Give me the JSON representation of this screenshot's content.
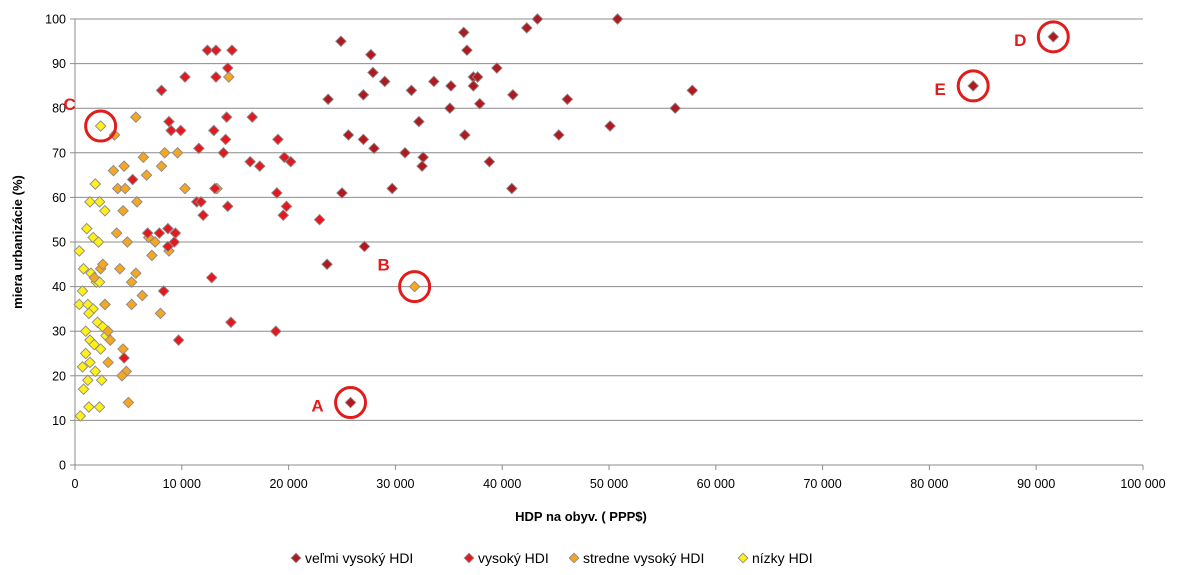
{
  "chart_data": {
    "type": "scatter",
    "xlabel": "HDP na obyv. ( PPP$)",
    "ylabel": "miera urbanizácie  (%)",
    "xlim": [
      0,
      100000
    ],
    "ylim": [
      0,
      100
    ],
    "x_ticks": [
      0,
      10000,
      20000,
      30000,
      40000,
      50000,
      60000,
      70000,
      80000,
      90000,
      100000
    ],
    "x_tick_labels": [
      "0",
      "10 000",
      "20 000",
      "30 000",
      "40 000",
      "50 000",
      "60 000",
      "70 000",
      "80 000",
      "90 000",
      "100 000"
    ],
    "y_ticks": [
      0,
      10,
      20,
      30,
      40,
      50,
      60,
      70,
      80,
      90,
      100
    ],
    "grid": "horizontal",
    "legend_position": "bottom",
    "series": [
      {
        "name": "veľmi vysoký HDI",
        "color": "#b0191f",
        "points": [
          [
            25800,
            14
          ],
          [
            43300,
            100
          ],
          [
            50800,
            100
          ],
          [
            42300,
            98
          ],
          [
            36400,
            97
          ],
          [
            24900,
            95
          ],
          [
            36700,
            93
          ],
          [
            27700,
            92
          ],
          [
            29000,
            86
          ],
          [
            33600,
            86
          ],
          [
            35200,
            85
          ],
          [
            31500,
            84
          ],
          [
            23700,
            82
          ],
          [
            41000,
            83
          ],
          [
            46100,
            82
          ],
          [
            57800,
            84
          ],
          [
            56200,
            80
          ],
          [
            37900,
            81
          ],
          [
            35100,
            80
          ],
          [
            37300,
            87
          ],
          [
            37700,
            87
          ],
          [
            39500,
            89
          ],
          [
            27900,
            88
          ],
          [
            37300,
            85
          ],
          [
            27000,
            83
          ],
          [
            32200,
            77
          ],
          [
            28000,
            71
          ],
          [
            36500,
            74
          ],
          [
            25600,
            74
          ],
          [
            27000,
            73
          ],
          [
            45300,
            74
          ],
          [
            50100,
            76
          ],
          [
            30900,
            70
          ],
          [
            32600,
            69
          ],
          [
            32500,
            67
          ],
          [
            38800,
            68
          ],
          [
            40900,
            62
          ],
          [
            29700,
            62
          ],
          [
            25000,
            61
          ],
          [
            27100,
            49
          ],
          [
            23600,
            45
          ],
          [
            84100,
            85
          ],
          [
            91600,
            96
          ]
        ]
      },
      {
        "name": "vysoký HDI",
        "color": "#e3191f",
        "points": [
          [
            12400,
            93
          ],
          [
            13200,
            93
          ],
          [
            14700,
            93
          ],
          [
            14300,
            89
          ],
          [
            13200,
            87
          ],
          [
            10300,
            87
          ],
          [
            8100,
            84
          ],
          [
            14200,
            78
          ],
          [
            16600,
            78
          ],
          [
            8800,
            77
          ],
          [
            9000,
            75
          ],
          [
            9900,
            75
          ],
          [
            13000,
            75
          ],
          [
            11600,
            71
          ],
          [
            14100,
            73
          ],
          [
            13900,
            70
          ],
          [
            19000,
            73
          ],
          [
            7900,
            52
          ],
          [
            8700,
            53
          ],
          [
            9400,
            52
          ],
          [
            11400,
            59
          ],
          [
            11800,
            59
          ],
          [
            12000,
            56
          ],
          [
            13100,
            62
          ],
          [
            14300,
            58
          ],
          [
            16400,
            68
          ],
          [
            17300,
            67
          ],
          [
            18900,
            61
          ],
          [
            19600,
            69
          ],
          [
            20200,
            68
          ],
          [
            19800,
            58
          ],
          [
            19500,
            56
          ],
          [
            22900,
            55
          ],
          [
            6800,
            52
          ],
          [
            5400,
            64
          ],
          [
            8700,
            49
          ],
          [
            9300,
            50
          ],
          [
            8300,
            39
          ],
          [
            4600,
            24
          ],
          [
            12800,
            42
          ],
          [
            14600,
            32
          ],
          [
            9700,
            28
          ],
          [
            18800,
            30
          ]
        ]
      },
      {
        "name": "stredne vysoký HDI",
        "color": "#f5a623",
        "points": [
          [
            31800,
            40
          ],
          [
            14400,
            87
          ],
          [
            5700,
            78
          ],
          [
            3700,
            74
          ],
          [
            4000,
            62
          ],
          [
            4700,
            62
          ],
          [
            3600,
            66
          ],
          [
            4600,
            67
          ],
          [
            6400,
            69
          ],
          [
            8400,
            70
          ],
          [
            9600,
            70
          ],
          [
            8100,
            67
          ],
          [
            10300,
            62
          ],
          [
            13300,
            62
          ],
          [
            5800,
            59
          ],
          [
            6700,
            65
          ],
          [
            3900,
            52
          ],
          [
            4900,
            50
          ],
          [
            4500,
            57
          ],
          [
            7200,
            47
          ],
          [
            6900,
            51
          ],
          [
            5300,
            41
          ],
          [
            5700,
            43
          ],
          [
            2400,
            44
          ],
          [
            4200,
            44
          ],
          [
            1800,
            42
          ],
          [
            3100,
            30
          ],
          [
            2800,
            36
          ],
          [
            4500,
            26
          ],
          [
            4800,
            21
          ],
          [
            5000,
            14
          ],
          [
            8000,
            34
          ],
          [
            6300,
            38
          ],
          [
            3100,
            23
          ],
          [
            2600,
            45
          ],
          [
            5300,
            36
          ],
          [
            3300,
            28
          ],
          [
            4400,
            20
          ],
          [
            7500,
            50
          ],
          [
            8800,
            48
          ]
        ]
      },
      {
        "name": "nízky HDI",
        "color": "#ffef1a",
        "points": [
          [
            2400,
            76
          ],
          [
            1900,
            63
          ],
          [
            1400,
            59
          ],
          [
            2300,
            59
          ],
          [
            2800,
            57
          ],
          [
            1100,
            53
          ],
          [
            1700,
            51
          ],
          [
            2200,
            50
          ],
          [
            400,
            48
          ],
          [
            800,
            44
          ],
          [
            1500,
            43
          ],
          [
            2000,
            41
          ],
          [
            700,
            39
          ],
          [
            2300,
            41
          ],
          [
            400,
            36
          ],
          [
            1200,
            36
          ],
          [
            1700,
            35
          ],
          [
            2800,
            36
          ],
          [
            1300,
            34
          ],
          [
            2100,
            32
          ],
          [
            2600,
            31
          ],
          [
            1000,
            30
          ],
          [
            1400,
            28
          ],
          [
            1800,
            27
          ],
          [
            1000,
            25
          ],
          [
            2400,
            26
          ],
          [
            1400,
            23
          ],
          [
            700,
            22
          ],
          [
            1900,
            21
          ],
          [
            1200,
            19
          ],
          [
            2500,
            19
          ],
          [
            800,
            17
          ],
          [
            1300,
            13
          ],
          [
            2300,
            13
          ],
          [
            500,
            11
          ],
          [
            2900,
            29
          ]
        ]
      }
    ],
    "annotations": [
      {
        "label": "A",
        "x": 25800,
        "y": 14,
        "label_side": "left"
      },
      {
        "label": "B",
        "x": 31800,
        "y": 40,
        "label_side": "upper-left"
      },
      {
        "label": "C",
        "x": 2400,
        "y": 76,
        "label_side": "upper-left"
      },
      {
        "label": "D",
        "x": 91600,
        "y": 96,
        "label_side": "left"
      },
      {
        "label": "E",
        "x": 84100,
        "y": 85,
        "label_side": "left"
      }
    ],
    "annotation_color": "#e21b1b"
  }
}
